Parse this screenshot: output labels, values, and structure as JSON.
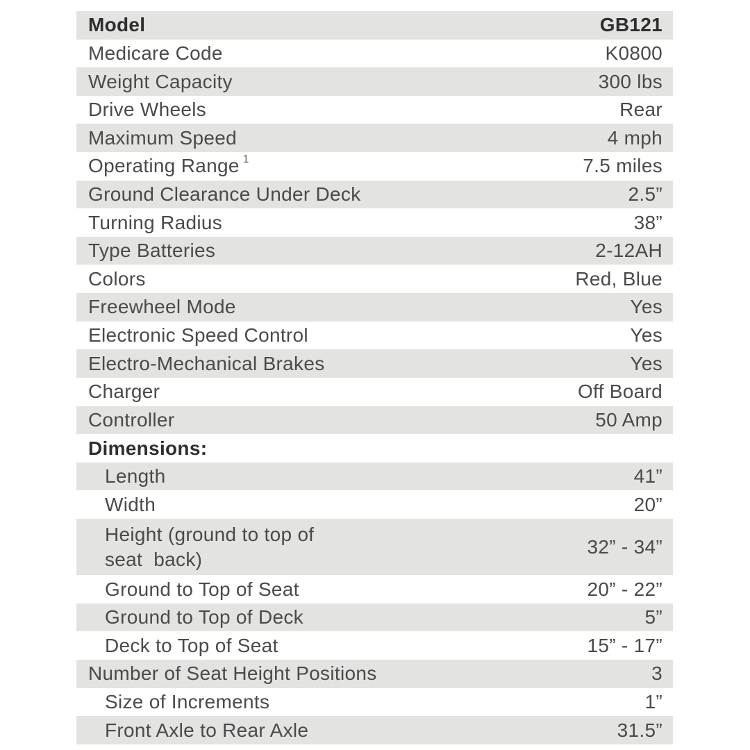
{
  "colors": {
    "row_shade": "#e3e3e2",
    "text": "#4a4a4a",
    "bold_text": "#2e2e2e",
    "background": "#ffffff"
  },
  "table": {
    "rows": [
      {
        "label": "Model",
        "value": "GB121",
        "bold": true,
        "shaded": true
      },
      {
        "label": "Medicare Code",
        "value": "K0800"
      },
      {
        "label": "Weight Capacity",
        "value": "300 lbs",
        "shaded": true
      },
      {
        "label": "Drive Wheels",
        "value": "Rear"
      },
      {
        "label": "Maximum Speed",
        "value": "4 mph",
        "shaded": true
      },
      {
        "label": "Operating Range",
        "sup": "1",
        "value": "7.5 miles"
      },
      {
        "label": "Ground Clearance Under Deck",
        "value": "2.5”",
        "shaded": true
      },
      {
        "label": "Turning Radius",
        "value": "38”"
      },
      {
        "label": "Type Batteries",
        "value": "2-12AH",
        "shaded": true
      },
      {
        "label": "Colors",
        "value": "Red, Blue"
      },
      {
        "label": "Freewheel Mode",
        "value": "Yes",
        "shaded": true
      },
      {
        "label": "Electronic Speed Control",
        "value": "Yes"
      },
      {
        "label": "Electro-Mechanical Brakes",
        "value": "Yes",
        "shaded": true
      },
      {
        "label": "Charger",
        "value": "Off Board"
      },
      {
        "label": "Controller",
        "value": "50 Amp",
        "shaded": true
      },
      {
        "label": "Dimensions:",
        "value": "",
        "bold": true
      },
      {
        "label": "Length",
        "value": "41”",
        "indent": true,
        "shaded": true
      },
      {
        "label": "Width",
        "value": "20”",
        "indent": true
      },
      {
        "label": "Height (ground to top of\nseat  back)",
        "value": "32” - 34”",
        "indent": true,
        "shaded": true,
        "tall": true
      },
      {
        "label": "Ground to Top of Seat",
        "value": "20” - 22”",
        "indent": true
      },
      {
        "label": "Ground to Top of Deck",
        "value": "5”",
        "indent": true,
        "shaded": true
      },
      {
        "label": "Deck to Top of Seat",
        "value": "15” - 17”",
        "indent": true
      },
      {
        "label": "Number of Seat Height Positions",
        "value": "3",
        "shaded": true
      },
      {
        "label": "Size of Increments",
        "value": "1”",
        "indent": true
      },
      {
        "label": "Front Axle to Rear Axle",
        "value": "31.5”",
        "indent": true,
        "shaded": true
      }
    ]
  }
}
